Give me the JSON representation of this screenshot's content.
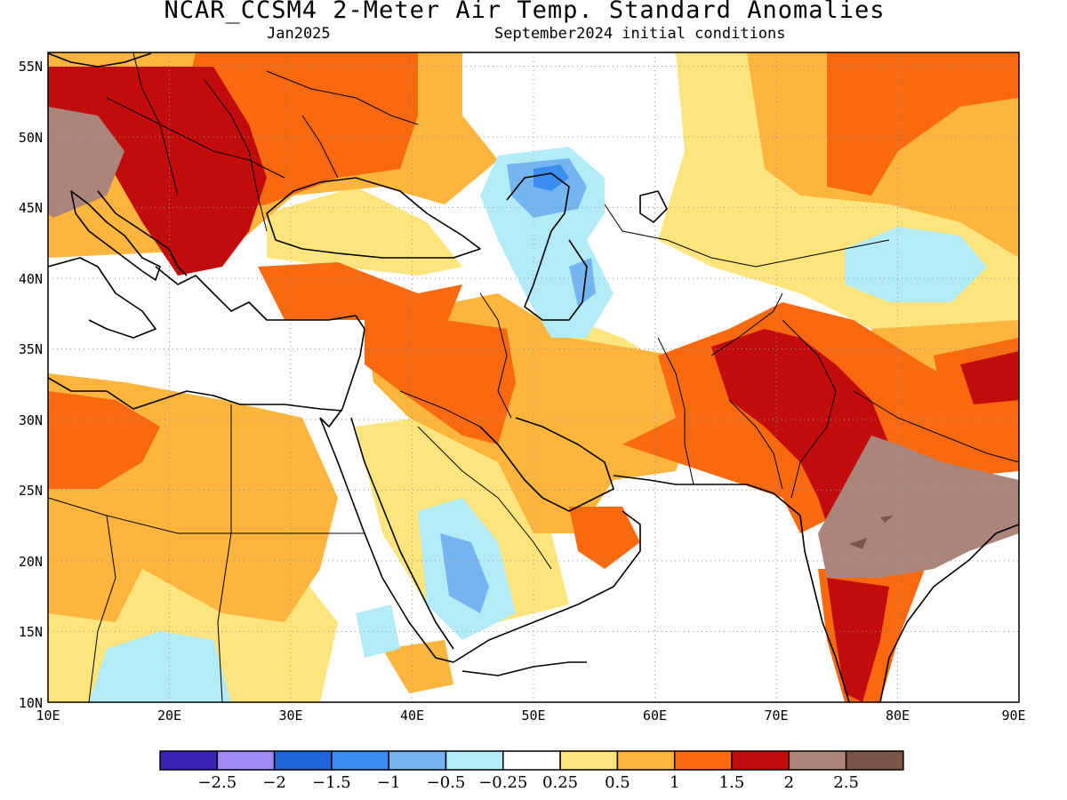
{
  "header": {
    "title": "NCAR_CCSM4 2-Meter Air Temp. Standard Anomalies",
    "valid_month": "Jan2025",
    "initial_conditions": "September2024 initial conditions"
  },
  "map": {
    "lon_range": [
      10,
      90
    ],
    "lat_range": [
      10,
      56
    ],
    "lon_ticks": [
      "10E",
      "20E",
      "30E",
      "40E",
      "50E",
      "60E",
      "70E",
      "80E",
      "90E"
    ],
    "lat_ticks": [
      "10N",
      "15N",
      "20N",
      "25N",
      "30N",
      "35N",
      "40N",
      "45N",
      "50N",
      "55N"
    ]
  },
  "colorbar": {
    "colors": [
      "#3a22b4",
      "#9e89f6",
      "#2166d8",
      "#3a8ef2",
      "#74b4f0",
      "#b3ecf7",
      "#ffffff",
      "#fee47c",
      "#fdb53d",
      "#f96a10",
      "#c20b0b",
      "#ab847a",
      "#7a5548"
    ],
    "labels": [
      "−2.5",
      "−2",
      "−1.5",
      "−1",
      "−0.5",
      "−0.25",
      "0.25",
      "0.5",
      "1",
      "1.5",
      "2",
      "2.5"
    ]
  }
}
